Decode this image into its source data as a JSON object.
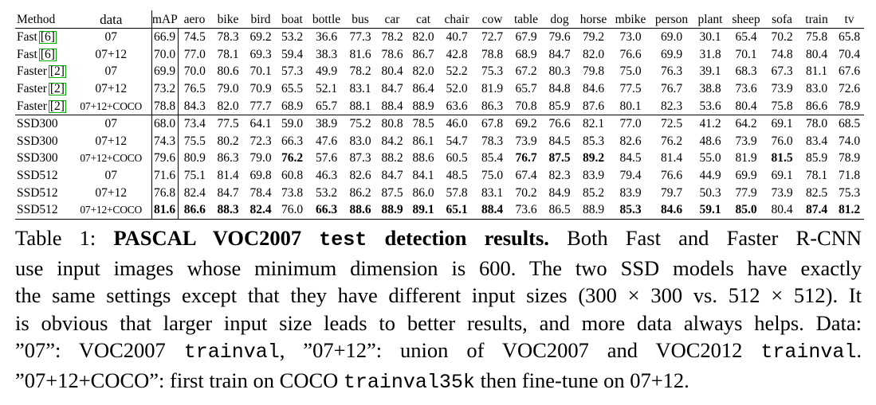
{
  "table": {
    "headers": [
      "Method",
      "data",
      "mAP",
      "aero",
      "bike",
      "bird",
      "boat",
      "bottle",
      "bus",
      "car",
      "cat",
      "chair",
      "cow",
      "table",
      "dog",
      "horse",
      "mbike",
      "person",
      "plant",
      "sheep",
      "sofa",
      "train",
      "tv"
    ],
    "rows": [
      {
        "method": "Fast",
        "ref": "[6]",
        "data": "07",
        "values": [
          "66.9",
          "74.5",
          "78.3",
          "69.2",
          "53.2",
          "36.6",
          "77.3",
          "78.2",
          "82.0",
          "40.7",
          "72.7",
          "67.9",
          "79.6",
          "79.2",
          "73.0",
          "69.0",
          "30.1",
          "65.4",
          "70.2",
          "75.8",
          "65.8"
        ],
        "bold": []
      },
      {
        "method": "Fast",
        "ref": "[6]",
        "data": "07+12",
        "values": [
          "70.0",
          "77.0",
          "78.1",
          "69.3",
          "59.4",
          "38.3",
          "81.6",
          "78.6",
          "86.7",
          "42.8",
          "78.8",
          "68.9",
          "84.7",
          "82.0",
          "76.6",
          "69.9",
          "31.8",
          "70.1",
          "74.8",
          "80.4",
          "70.4"
        ],
        "bold": []
      },
      {
        "method": "Faster",
        "ref": "[2]",
        "data": "07",
        "values": [
          "69.9",
          "70.0",
          "80.6",
          "70.1",
          "57.3",
          "49.9",
          "78.2",
          "80.4",
          "82.0",
          "52.2",
          "75.3",
          "67.2",
          "80.3",
          "79.8",
          "75.0",
          "76.3",
          "39.1",
          "68.3",
          "67.3",
          "81.1",
          "67.6"
        ],
        "bold": []
      },
      {
        "method": "Faster",
        "ref": "[2]",
        "data": "07+12",
        "values": [
          "73.2",
          "76.5",
          "79.0",
          "70.9",
          "65.5",
          "52.1",
          "83.1",
          "84.7",
          "86.4",
          "52.0",
          "81.9",
          "65.7",
          "84.8",
          "84.6",
          "77.5",
          "76.7",
          "38.8",
          "73.6",
          "73.9",
          "83.0",
          "72.6"
        ],
        "bold": []
      },
      {
        "method": "Faster",
        "ref": "[2]",
        "data": "07+12+COCO",
        "values": [
          "78.8",
          "84.3",
          "82.0",
          "77.7",
          "68.9",
          "65.7",
          "88.1",
          "88.4",
          "88.9",
          "63.6",
          "86.3",
          "70.8",
          "85.9",
          "87.6",
          "80.1",
          "82.3",
          "53.6",
          "80.4",
          "75.8",
          "86.6",
          "78.9"
        ],
        "bold": []
      },
      {
        "method": "SSD300",
        "ref": "",
        "data": "07",
        "values": [
          "68.0",
          "73.4",
          "77.5",
          "64.1",
          "59.0",
          "38.9",
          "75.2",
          "80.8",
          "78.5",
          "46.0",
          "67.8",
          "69.2",
          "76.6",
          "82.1",
          "77.0",
          "72.5",
          "41.2",
          "64.2",
          "69.1",
          "78.0",
          "68.5"
        ],
        "bold": []
      },
      {
        "method": "SSD300",
        "ref": "",
        "data": "07+12",
        "values": [
          "74.3",
          "75.5",
          "80.2",
          "72.3",
          "66.3",
          "47.6",
          "83.0",
          "84.2",
          "86.1",
          "54.7",
          "78.3",
          "73.9",
          "84.5",
          "85.3",
          "82.6",
          "76.2",
          "48.6",
          "73.9",
          "76.0",
          "83.4",
          "74.0"
        ],
        "bold": []
      },
      {
        "method": "SSD300",
        "ref": "",
        "data": "07+12+COCO",
        "values": [
          "79.6",
          "80.9",
          "86.3",
          "79.0",
          "76.2",
          "57.6",
          "87.3",
          "88.2",
          "88.6",
          "60.5",
          "85.4",
          "76.7",
          "87.5",
          "89.2",
          "84.5",
          "81.4",
          "55.0",
          "81.9",
          "81.5",
          "85.9",
          "78.9"
        ],
        "bold": [
          4,
          11,
          12,
          13,
          18
        ]
      },
      {
        "method": "SSD512",
        "ref": "",
        "data": "07",
        "values": [
          "71.6",
          "75.1",
          "81.4",
          "69.8",
          "60.8",
          "46.3",
          "82.6",
          "84.7",
          "84.1",
          "48.5",
          "75.0",
          "67.4",
          "82.3",
          "83.9",
          "79.4",
          "76.6",
          "44.9",
          "69.9",
          "69.1",
          "78.1",
          "71.8"
        ],
        "bold": []
      },
      {
        "method": "SSD512",
        "ref": "",
        "data": "07+12",
        "values": [
          "76.8",
          "82.4",
          "84.7",
          "78.4",
          "73.8",
          "53.2",
          "86.2",
          "87.5",
          "86.0",
          "57.8",
          "83.1",
          "70.2",
          "84.9",
          "85.2",
          "83.9",
          "79.7",
          "50.3",
          "77.9",
          "73.9",
          "82.5",
          "75.3"
        ],
        "bold": []
      },
      {
        "method": "SSD512",
        "ref": "",
        "data": "07+12+COCO",
        "values": [
          "81.6",
          "86.6",
          "88.3",
          "82.4",
          "76.0",
          "66.3",
          "88.6",
          "88.9",
          "89.1",
          "65.1",
          "88.4",
          "73.6",
          "86.5",
          "88.9",
          "85.3",
          "84.6",
          "59.1",
          "85.0",
          "80.4",
          "87.4",
          "81.2"
        ],
        "bold": [
          0,
          1,
          2,
          3,
          5,
          6,
          7,
          8,
          9,
          10,
          14,
          15,
          16,
          17,
          19,
          20
        ]
      }
    ]
  },
  "caption": {
    "label": "Table 1: ",
    "title": "PASCAL VOC2007 ",
    "title_mono": "test",
    "title_end": " detection results.",
    "l1_rest": " Both Fast and Faster R-CNN",
    "l2": "use input images whose minimum dimension is 600. The two SSD models have exactly",
    "l3": "the same settings except that they have different input sizes (300 × 300 vs. 512 × 512). It",
    "l4": "is obvious that larger input size leads to better results, and more data always helps. Data:",
    "l5a": "”07”: VOC2007 ",
    "l5b": "trainval",
    "l5c": ", ”07+12”: union of VOC2007 and VOC2012 ",
    "l5d": "trainval",
    "l5e": ".",
    "l6a": "”07+12+COCO”: first train on COCO ",
    "l6b": "trainval35k",
    "l6c": " then fine-tune on 07+12."
  }
}
